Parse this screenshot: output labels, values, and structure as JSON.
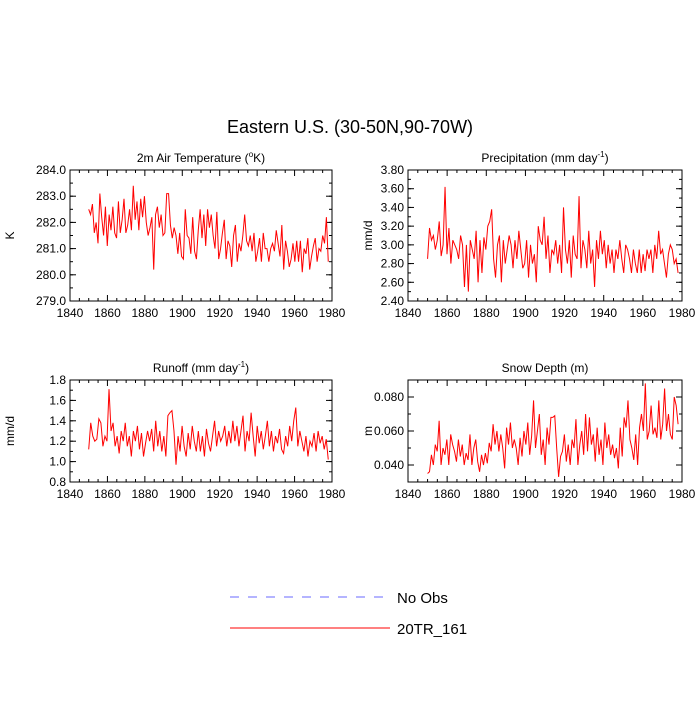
{
  "figure_title": "Eastern U.S. (30-50N,90-70W)",
  "legend": [
    {
      "label": "No Obs",
      "color": "#6a6aff",
      "dashed": true
    },
    {
      "label": "20TR_161",
      "color": "#ff0000",
      "dashed": false
    }
  ],
  "chart_data": [
    {
      "type": "line",
      "title": "2m Air Temperature (°K)",
      "title_parts": [
        "2m Air Temperature (",
        "o",
        "K)"
      ],
      "ylabel": "K",
      "xlim": [
        1840,
        1980
      ],
      "ylim": [
        279,
        284
      ],
      "x_ticks": [
        "1840",
        "1860",
        "1880",
        "1900",
        "1920",
        "1940",
        "1960",
        "1980"
      ],
      "y_ticks": [
        "279.0",
        "280.0",
        "281.0",
        "282.0",
        "283.0",
        "284.0"
      ],
      "series": [
        {
          "color": "#ff0000",
          "x_start": 1850,
          "values": [
            282.5,
            282.3,
            282.7,
            281.6,
            282.0,
            281.2,
            283.1,
            282.2,
            281.5,
            282.6,
            281.1,
            282.3,
            281.7,
            282.6,
            281.6,
            281.4,
            282.8,
            281.6,
            282.1,
            282.9,
            281.6,
            281.9,
            282.5,
            281.7,
            283.4,
            282.1,
            282.8,
            281.7,
            282.9,
            282.2,
            283.0,
            282.0,
            281.5,
            281.8,
            282.2,
            280.2,
            282.3,
            282.6,
            281.8,
            282.3,
            281.5,
            281.6,
            283.1,
            283.1,
            281.9,
            281.4,
            281.8,
            281.5,
            280.8,
            281.6,
            280.7,
            280.6,
            282.5,
            281.5,
            281.4,
            280.8,
            282.2,
            280.9,
            280.6,
            281.7,
            282.5,
            281.4,
            282.3,
            281.1,
            282.5,
            281.8,
            282.3,
            281.5,
            281.0,
            282.4,
            280.6,
            281.0,
            281.6,
            282.1,
            280.6,
            281.3,
            281.1,
            280.3,
            281.5,
            281.9,
            280.5,
            281.2,
            280.9,
            281.5,
            282.3,
            281.3,
            281.1,
            281.5,
            280.9,
            281.6,
            280.5,
            280.9,
            281.4,
            280.5,
            281.6,
            281.0,
            281.0,
            280.5,
            281.0,
            281.2,
            280.9,
            281.7,
            281.2,
            280.7,
            281.9,
            280.2,
            281.3,
            280.9,
            280.3,
            280.6,
            281.2,
            280.5,
            281.3,
            280.5,
            281.3,
            280.1,
            281.0,
            280.8,
            281.4,
            280.2,
            280.7,
            281.1,
            281.4,
            280.5,
            281.0,
            280.9,
            281.5,
            281.2,
            282.2,
            280.5
          ]
        }
      ]
    },
    {
      "type": "line",
      "title": "Precipitation (mm day-1)",
      "title_parts": [
        "Precipitation (mm day",
        "-1",
        ")"
      ],
      "ylabel": "mm/d",
      "xlim": [
        1840,
        1980
      ],
      "ylim": [
        2.4,
        3.8
      ],
      "x_ticks": [
        "1840",
        "1860",
        "1880",
        "1900",
        "1920",
        "1940",
        "1960",
        "1980"
      ],
      "y_ticks": [
        "2.40",
        "2.60",
        "2.80",
        "3.00",
        "3.20",
        "3.40",
        "3.60",
        "3.80"
      ],
      "series": [
        {
          "color": "#ff0000",
          "x_start": 1850,
          "values": [
            2.85,
            3.18,
            3.05,
            3.1,
            2.95,
            3.05,
            3.25,
            2.88,
            3.0,
            3.62,
            2.9,
            3.18,
            2.8,
            3.05,
            3.0,
            2.95,
            2.85,
            3.1,
            3.0,
            2.55,
            3.0,
            2.5,
            3.05,
            2.95,
            2.85,
            3.15,
            2.6,
            3.05,
            2.7,
            3.08,
            2.95,
            3.2,
            3.25,
            3.38,
            2.85,
            2.65,
            3.0,
            3.1,
            2.6,
            3.05,
            2.8,
            2.95,
            3.1,
            3.0,
            2.75,
            3.05,
            2.85,
            3.15,
            2.95,
            2.75,
            2.8,
            3.05,
            2.65,
            3.0,
            2.8,
            2.9,
            2.6,
            3.2,
            3.05,
            3.0,
            3.3,
            2.85,
            3.1,
            2.7,
            2.95,
            2.9,
            3.05,
            2.8,
            3.0,
            2.7,
            3.4,
            2.95,
            2.8,
            3.05,
            2.65,
            3.1,
            2.9,
            2.85,
            3.52,
            2.75,
            3.05,
            2.95,
            2.75,
            3.15,
            2.8,
            2.95,
            2.55,
            3.05,
            2.85,
            3.15,
            2.9,
            3.05,
            2.75,
            3.0,
            2.8,
            2.95,
            2.7,
            2.95,
            2.85,
            3.05,
            2.85,
            2.7,
            3.0,
            2.95,
            2.85,
            2.7,
            2.95,
            2.8,
            2.7,
            2.95,
            2.7,
            2.9,
            2.72,
            2.95,
            2.85,
            2.95,
            2.7,
            3.0,
            2.85,
            3.15,
            2.9,
            2.95,
            2.8,
            2.65,
            2.9,
            3.0,
            2.95,
            2.8,
            2.85,
            2.7
          ]
        }
      ]
    },
    {
      "type": "line",
      "title": "Runoff (mm day-1)",
      "title_parts": [
        "Runoff (mm day",
        "-1",
        ")"
      ],
      "ylabel": "mm/d",
      "xlim": [
        1840,
        1980
      ],
      "ylim": [
        0.8,
        1.8
      ],
      "x_ticks": [
        "1840",
        "1860",
        "1880",
        "1900",
        "1920",
        "1940",
        "1960",
        "1980"
      ],
      "y_ticks": [
        "0.8",
        "1.0",
        "1.2",
        "1.4",
        "1.6",
        "1.8"
      ],
      "series": [
        {
          "color": "#ff0000",
          "x_start": 1850,
          "values": [
            1.12,
            1.38,
            1.25,
            1.2,
            1.22,
            1.42,
            1.38,
            1.15,
            1.25,
            1.2,
            1.71,
            1.3,
            1.38,
            1.15,
            1.25,
            1.08,
            1.3,
            1.2,
            1.38,
            1.15,
            1.25,
            1.05,
            1.3,
            1.2,
            1.35,
            1.12,
            1.28,
            1.05,
            1.18,
            1.3,
            1.2,
            1.32,
            1.1,
            1.4,
            1.15,
            1.3,
            1.1,
            1.25,
            1.05,
            1.45,
            1.48,
            1.5,
            1.3,
            0.97,
            1.25,
            1.1,
            1.35,
            1.15,
            1.05,
            1.28,
            1.12,
            1.35,
            1.2,
            1.1,
            1.3,
            1.1,
            1.25,
            1.05,
            1.32,
            1.18,
            1.1,
            1.25,
            1.4,
            1.15,
            1.3,
            1.2,
            1.25,
            1.35,
            1.15,
            1.3,
            1.18,
            1.4,
            1.2,
            1.35,
            1.15,
            1.3,
            1.45,
            1.1,
            1.3,
            1.2,
            1.48,
            1.25,
            1.05,
            1.35,
            1.18,
            1.3,
            1.12,
            1.25,
            1.4,
            1.15,
            1.3,
            1.1,
            1.25,
            1.18,
            1.32,
            1.12,
            1.08,
            1.25,
            1.15,
            1.35,
            1.2,
            1.4,
            1.53,
            1.15,
            1.3,
            1.2,
            1.1,
            1.25,
            1.05,
            1.2,
            1.15,
            1.28,
            1.1,
            1.3,
            1.18,
            1.25,
            1.12,
            1.22,
            1.02
          ]
        }
      ]
    },
    {
      "type": "line",
      "title": "Snow Depth (m)",
      "title_parts": [
        "Snow Depth (m)",
        "",
        ""
      ],
      "ylabel": "m",
      "xlim": [
        1840,
        1980
      ],
      "ylim": [
        0.03,
        0.09
      ],
      "x_ticks": [
        "1840",
        "1860",
        "1880",
        "1900",
        "1920",
        "1940",
        "1960",
        "1980"
      ],
      "y_ticks": [
        "0.040",
        "0.060",
        "0.080"
      ],
      "series": [
        {
          "color": "#ff0000",
          "x_start": 1850,
          "values": [
            0.035,
            0.036,
            0.046,
            0.04,
            0.052,
            0.048,
            0.066,
            0.04,
            0.05,
            0.046,
            0.055,
            0.04,
            0.058,
            0.052,
            0.048,
            0.042,
            0.055,
            0.045,
            0.052,
            0.04,
            0.047,
            0.043,
            0.058,
            0.04,
            0.05,
            0.055,
            0.042,
            0.036,
            0.046,
            0.04,
            0.047,
            0.041,
            0.053,
            0.048,
            0.064,
            0.052,
            0.06,
            0.048,
            0.058,
            0.05,
            0.038,
            0.062,
            0.052,
            0.065,
            0.05,
            0.055,
            0.05,
            0.04,
            0.056,
            0.045,
            0.06,
            0.052,
            0.065,
            0.046,
            0.057,
            0.078,
            0.05,
            0.06,
            0.07,
            0.046,
            0.055,
            0.04,
            0.062,
            0.052,
            0.068,
            0.068,
            0.069,
            0.05,
            0.033,
            0.045,
            0.048,
            0.058,
            0.042,
            0.052,
            0.04,
            0.055,
            0.05,
            0.067,
            0.04,
            0.052,
            0.06,
            0.046,
            0.07,
            0.048,
            0.068,
            0.052,
            0.058,
            0.042,
            0.062,
            0.046,
            0.055,
            0.04,
            0.065,
            0.05,
            0.058,
            0.046,
            0.052,
            0.044,
            0.05,
            0.038,
            0.062,
            0.045,
            0.068,
            0.062,
            0.078,
            0.055,
            0.05,
            0.043,
            0.058,
            0.04,
            0.062,
            0.07,
            0.06,
            0.088,
            0.055,
            0.06,
            0.075,
            0.058,
            0.062,
            0.056,
            0.078,
            0.055,
            0.064,
            0.085,
            0.06,
            0.07,
            0.058,
            0.055,
            0.08,
            0.075,
            0.064
          ]
        }
      ]
    }
  ]
}
